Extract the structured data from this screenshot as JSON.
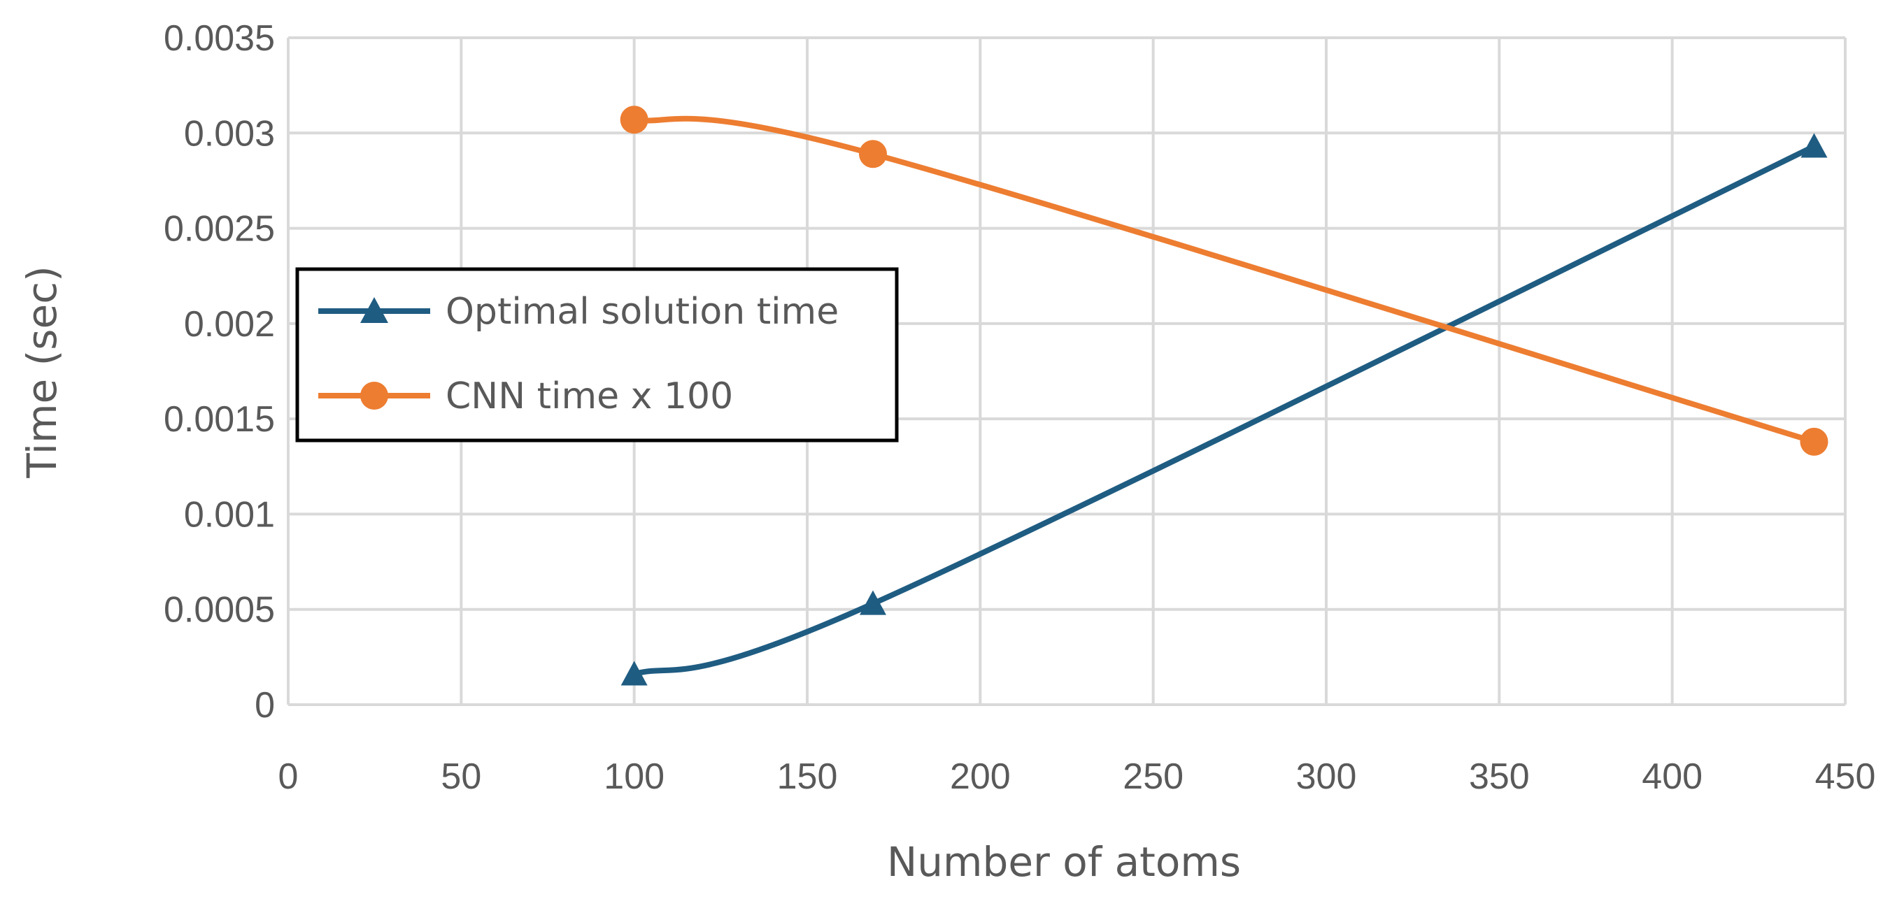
{
  "chart_data": {
    "type": "line",
    "xlabel": "Number of atoms",
    "ylabel": "Time (sec)",
    "xlim": [
      0,
      450
    ],
    "ylim": [
      0,
      0.0035
    ],
    "x_ticks": [
      "0",
      "50",
      "100",
      "150",
      "200",
      "250",
      "300",
      "350",
      "400",
      "450"
    ],
    "y_ticks": [
      "0",
      "0.0005",
      "0.001",
      "0.0015",
      "0.002",
      "0.0025",
      "0.003",
      "0.0035"
    ],
    "grid": true,
    "smooth": true,
    "legend_position": "left",
    "series": [
      {
        "name": "Optimal solution time",
        "color": "#1f5c82",
        "marker": "triangle",
        "x": [
          100,
          169,
          441
        ],
        "y": [
          0.00016,
          0.00053,
          0.00293
        ]
      },
      {
        "name": "CNN time x 100",
        "color": "#ed7d31",
        "marker": "circle",
        "x": [
          100,
          169,
          441
        ],
        "y": [
          0.00307,
          0.00289,
          0.00138
        ]
      }
    ]
  }
}
